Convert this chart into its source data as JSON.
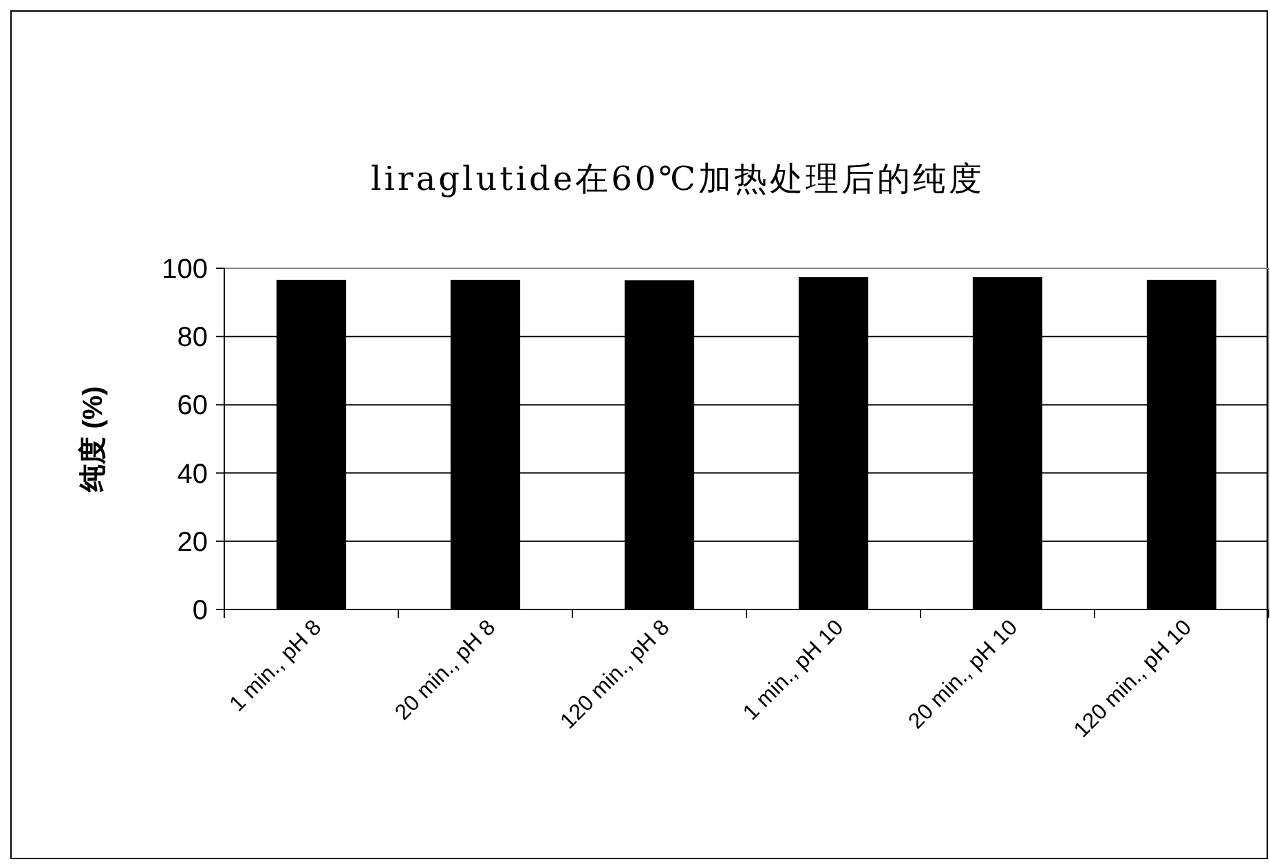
{
  "chart_data": {
    "type": "bar",
    "title": "liraglutide在60℃加热处理后的纯度",
    "ylabel": "纯度 (%)",
    "categories": [
      "1 min., pH 8",
      "20 min., pH 8",
      "120 min., pH 8",
      "1 min., pH 10",
      "20 min., pH 10",
      "120 min., pH 10"
    ],
    "values": [
      96.6,
      96.6,
      96.5,
      97.4,
      97.4,
      96.6
    ],
    "color": "#000000",
    "ylim": [
      0,
      100
    ],
    "yticks": [
      0,
      20,
      40,
      60,
      80,
      100
    ],
    "grid": "y"
  }
}
